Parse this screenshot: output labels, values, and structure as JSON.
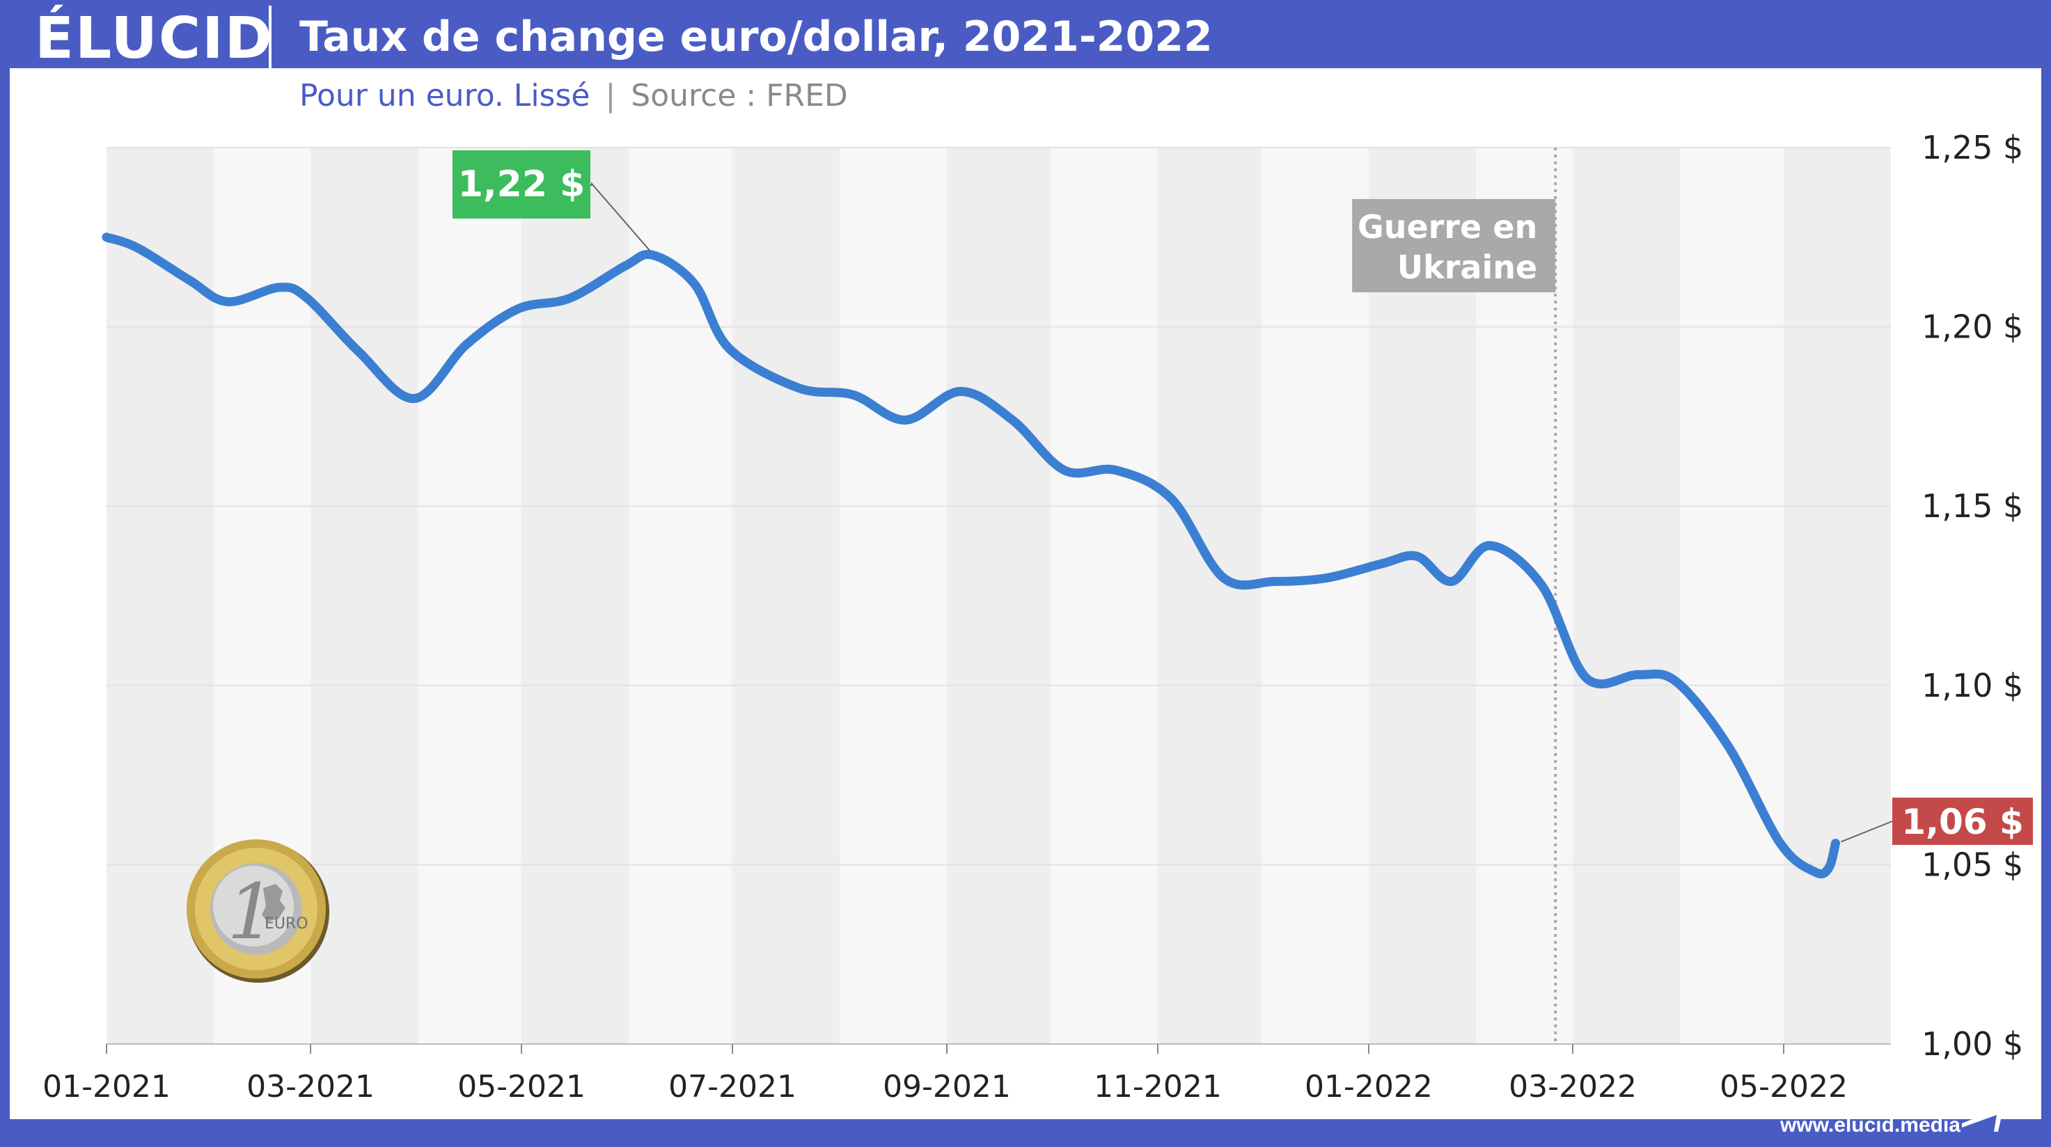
{
  "header": {
    "logo": "ÉLUCID",
    "title": "Taux de change euro/dollar, 2021-2022"
  },
  "subtitle": {
    "main": "Pour un euro. Lissé",
    "separator": "|",
    "source": "Source : FRED"
  },
  "footer": {
    "url": "www.elucid.media"
  },
  "colors": {
    "brand": "#4a5cc4",
    "line": "#3b7fd3",
    "max_label": "#3cbc5c",
    "last_label": "#c44a4a",
    "event_label": "#a9a9a9"
  },
  "chart_data": {
    "type": "line",
    "title": "Taux de change euro/dollar, 2021-2022",
    "subtitle": "Pour un euro. Lissé",
    "xlabel": "",
    "ylabel": "",
    "x_ticks": [
      "01-2021",
      "03-2021",
      "05-2021",
      "07-2021",
      "09-2021",
      "11-2021",
      "01-2022",
      "03-2022",
      "05-2022"
    ],
    "y_ticks": [
      "1,00 $",
      "1,05 $",
      "1,10 $",
      "1,15 $",
      "1,20 $",
      "1,25 $"
    ],
    "y_tick_values": [
      1.0,
      1.05,
      1.1,
      1.15,
      1.2,
      1.25
    ],
    "ylim": [
      1.0,
      1.25
    ],
    "xlim": [
      "2021-01-01",
      "2022-05-31"
    ],
    "grid": true,
    "y_axis_side": "right",
    "series": [
      {
        "values": [
          [
            "2021-01-01",
            1.225
          ],
          [
            "2021-01-10",
            1.222
          ],
          [
            "2021-01-25",
            1.213
          ],
          [
            "2021-02-05",
            1.207
          ],
          [
            "2021-02-20",
            1.211
          ],
          [
            "2021-02-28",
            1.208
          ],
          [
            "2021-03-15",
            1.193
          ],
          [
            "2021-03-31",
            1.18
          ],
          [
            "2021-04-15",
            1.195
          ],
          [
            "2021-04-30",
            1.205
          ],
          [
            "2021-05-15",
            1.208
          ],
          [
            "2021-05-31",
            1.217
          ],
          [
            "2021-06-08",
            1.22
          ],
          [
            "2021-06-20",
            1.212
          ],
          [
            "2021-06-30",
            1.194
          ],
          [
            "2021-07-20",
            1.183
          ],
          [
            "2021-08-05",
            1.181
          ],
          [
            "2021-08-20",
            1.174
          ],
          [
            "2021-09-05",
            1.182
          ],
          [
            "2021-09-20",
            1.174
          ],
          [
            "2021-10-05",
            1.16
          ],
          [
            "2021-10-20",
            1.16
          ],
          [
            "2021-11-05",
            1.152
          ],
          [
            "2021-11-20",
            1.13
          ],
          [
            "2021-12-05",
            1.129
          ],
          [
            "2021-12-20",
            1.13
          ],
          [
            "2022-01-05",
            1.134
          ],
          [
            "2022-01-15",
            1.136
          ],
          [
            "2022-01-25",
            1.129
          ],
          [
            "2022-02-05",
            1.139
          ],
          [
            "2022-02-20",
            1.128
          ],
          [
            "2022-03-05",
            1.102
          ],
          [
            "2022-03-20",
            1.103
          ],
          [
            "2022-03-31",
            1.101
          ],
          [
            "2022-04-15",
            1.083
          ],
          [
            "2022-04-30",
            1.056
          ],
          [
            "2022-05-10",
            1.048
          ],
          [
            "2022-05-14",
            1.049
          ],
          [
            "2022-05-16",
            1.056
          ]
        ]
      }
    ],
    "annotations": [
      {
        "text": "1,22 $",
        "x": "2021-06-08",
        "y": 1.22,
        "kind": "max"
      },
      {
        "text": "1,06 $",
        "x": "2022-05-16",
        "y": 1.056,
        "kind": "last"
      },
      {
        "text": "Guerre en Ukraine",
        "lines": [
          "Guerre en",
          "Ukraine"
        ],
        "x": "2022-02-24",
        "kind": "event"
      }
    ]
  }
}
